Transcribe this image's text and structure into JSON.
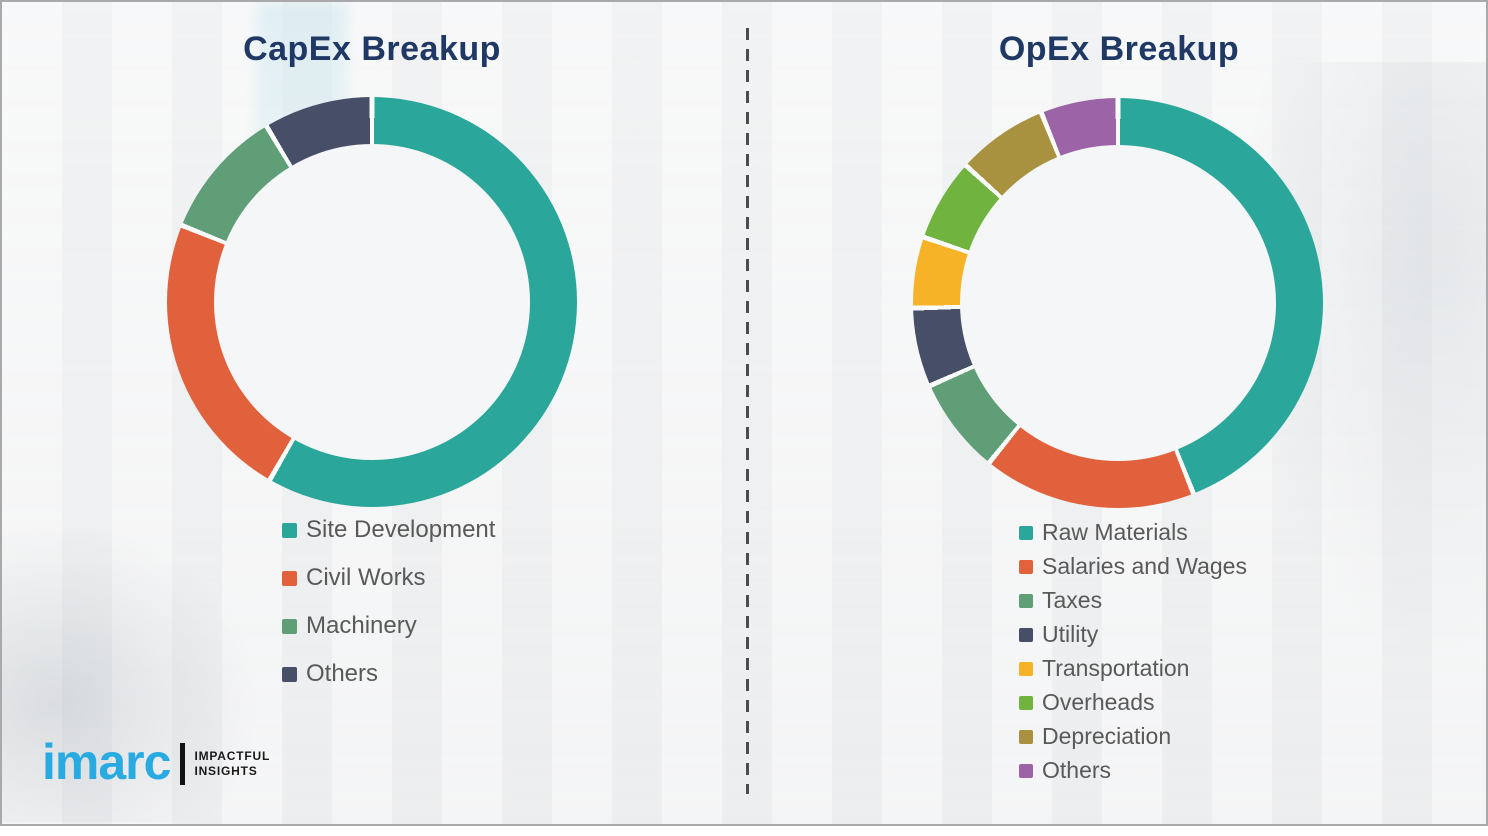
{
  "page": {
    "background_color": "#f2f3f4",
    "frame_border_color": "#a8a9ab",
    "divider_color": "#4a4c4e",
    "legend_text_color": "#595959",
    "title_color": "#1F3864"
  },
  "branding": {
    "logo_text": "imarc",
    "logo_color": "#29ABE2",
    "tagline_line1": "IMPACTFUL",
    "tagline_line2": "INSIGHTS"
  },
  "chart_data": [
    {
      "type": "pie",
      "variant": "donut",
      "title": "CapEx Breakup",
      "title_color": "#1F3864",
      "legend_position": "bottom-left",
      "labels": [
        "Site Development",
        "Civil Works",
        "Machinery",
        "Others"
      ],
      "values": [
        58.3,
        22.8,
        10.3,
        8.6
      ],
      "colors": [
        "#2AA79A",
        "#E2613D",
        "#5F9E77",
        "#474E68"
      ],
      "start_angle_deg": 0,
      "direction": "clockwise"
    },
    {
      "type": "pie",
      "variant": "donut",
      "title": "OpEx Breakup",
      "title_color": "#1F3864",
      "legend_position": "bottom-left",
      "labels": [
        "Raw Materials",
        "Salaries and Wages",
        "Taxes",
        "Utility",
        "Transportation",
        "Overheads",
        "Depreciation",
        "Others"
      ],
      "values": [
        44.0,
        16.8,
        7.6,
        6.2,
        5.6,
        6.5,
        7.2,
        6.1
      ],
      "colors": [
        "#2AA79A",
        "#E2613D",
        "#5F9E77",
        "#474E68",
        "#F6B327",
        "#70B43F",
        "#A8913F",
        "#9C64A6"
      ],
      "start_angle_deg": 0,
      "direction": "clockwise"
    }
  ]
}
